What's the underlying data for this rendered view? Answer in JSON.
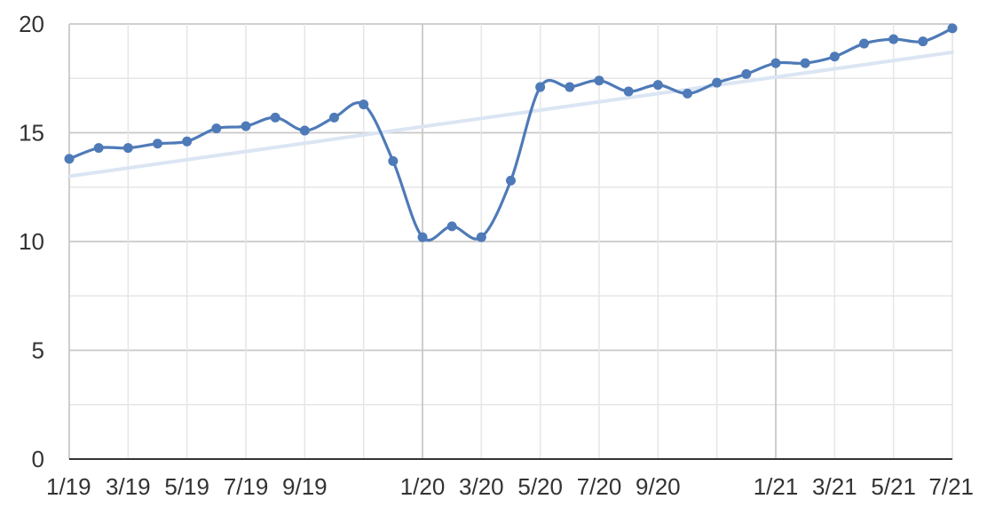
{
  "chart_data": {
    "type": "line",
    "title": "",
    "xlabel": "",
    "ylabel": "",
    "x": [
      "2019-01",
      "2019-02",
      "2019-03",
      "2019-04",
      "2019-05",
      "2019-06",
      "2019-07",
      "2019-08",
      "2019-09",
      "2019-10",
      "2019-11",
      "2019-12",
      "2020-01",
      "2020-02",
      "2020-03",
      "2020-04",
      "2020-05",
      "2020-06",
      "2020-07",
      "2020-08",
      "2020-09",
      "2020-10",
      "2020-11",
      "2020-12",
      "2021-01",
      "2021-02",
      "2021-03",
      "2021-04",
      "2021-05",
      "2021-06",
      "2021-07"
    ],
    "series": [
      {
        "values": [
          13.8,
          14.3,
          14.3,
          14.5,
          14.6,
          15.2,
          15.3,
          15.7,
          15.1,
          15.7,
          16.3,
          13.7,
          10.2,
          10.7,
          10.2,
          12.8,
          17.1,
          17.1,
          17.4,
          16.9,
          17.2,
          16.8,
          17.3,
          17.7,
          18.2,
          18.2,
          18.5,
          19.1,
          19.3,
          19.2,
          19.8
        ],
        "color": "#4e7ab8",
        "smooth": true,
        "markers": true
      }
    ],
    "trendline": {
      "start": 13.0,
      "end": 18.7,
      "color": "#dbe5f3"
    },
    "ylim": [
      0,
      20
    ],
    "y_ticks": [
      "0",
      "5",
      "10",
      "15",
      "20"
    ],
    "x_tick_labels": [
      "1/19",
      "3/19",
      "5/19",
      "7/19",
      "9/19",
      "1/20",
      "3/20",
      "5/20",
      "7/20",
      "9/20",
      "1/21",
      "3/21",
      "5/21",
      "7/21"
    ],
    "grid": true,
    "legend": "none"
  }
}
